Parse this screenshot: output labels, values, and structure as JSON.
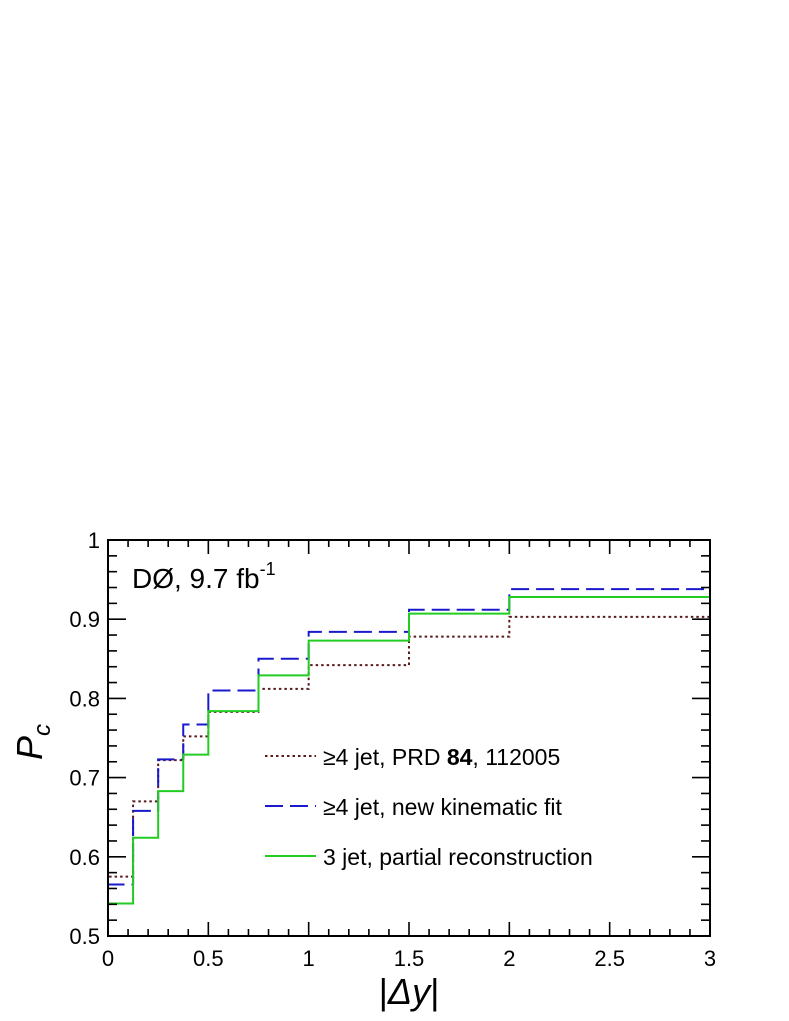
{
  "chart_data": {
    "type": "line",
    "step": true,
    "title": "",
    "annotation": {
      "main": "DØ, 9.7 fb",
      "superscript": "-1"
    },
    "xlabel": {
      "open": "|",
      "symbol": "Δy",
      "close": "|"
    },
    "ylabel": {
      "symbol": "P",
      "subscript": "c"
    },
    "xlim": [
      0,
      3
    ],
    "ylim": [
      0.5,
      1.0
    ],
    "x_ticks": [
      0,
      0.5,
      1,
      1.5,
      2,
      2.5,
      3
    ],
    "x_tick_labels": [
      "0",
      "0.5",
      "1",
      "1.5",
      "2",
      "2.5",
      "3"
    ],
    "y_ticks": [
      0.5,
      0.6,
      0.7,
      0.8,
      0.9,
      1.0
    ],
    "y_tick_labels": [
      "0.5",
      "0.6",
      "0.7",
      "0.8",
      "0.9",
      "1"
    ],
    "grid": false,
    "legend_position": "center-right",
    "bin_edges": [
      0,
      0.125,
      0.25,
      0.375,
      0.5,
      0.75,
      1.0,
      1.5,
      2.0,
      3.0
    ],
    "series": [
      {
        "name_parts": [
          "≥4 jet, PRD ",
          "84",
          ", 112005"
        ],
        "style": "dotted",
        "color": "#5a1a1a",
        "values": [
          0.575,
          0.67,
          0.722,
          0.752,
          0.783,
          0.812,
          0.842,
          0.878,
          0.903
        ]
      },
      {
        "name_parts": [
          "≥4 jet, new kinematic fit",
          "",
          ""
        ],
        "style": "dashed",
        "color": "#1a1acc",
        "values": [
          0.565,
          0.658,
          0.723,
          0.767,
          0.81,
          0.85,
          0.884,
          0.912,
          0.938
        ]
      },
      {
        "name_parts": [
          "3 jet, partial reconstruction",
          "",
          ""
        ],
        "style": "solid",
        "color": "#22cc22",
        "values": [
          0.541,
          0.624,
          0.683,
          0.729,
          0.784,
          0.829,
          0.873,
          0.907,
          0.928
        ]
      }
    ]
  }
}
